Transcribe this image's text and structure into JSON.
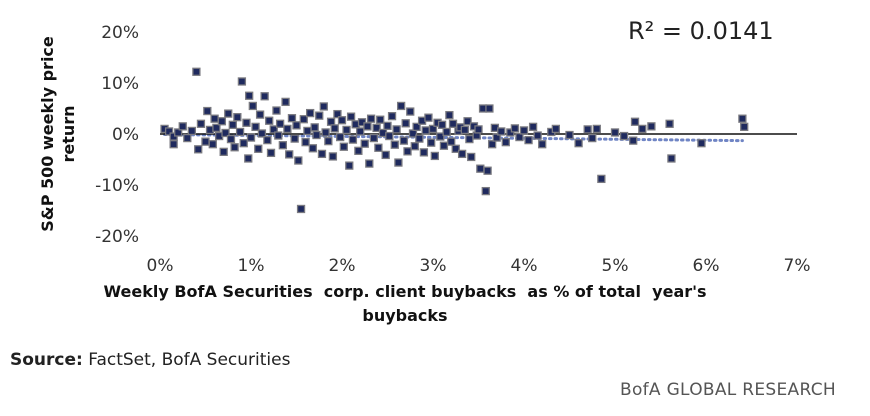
{
  "chart_data": {
    "type": "scatter",
    "annotation": "R² = 0.0141",
    "xlabel_line1": "Weekly BofA Securities  corp. client buybacks  as % of total  year's",
    "xlabel_line2": "buybacks",
    "ylabel_line1": "S&P 500 weekly  price",
    "ylabel_line2": "return",
    "xlim": [
      0,
      7
    ],
    "ylim": [
      -20,
      20
    ],
    "x_ticks": [
      {
        "value": 0,
        "label": "0%"
      },
      {
        "value": 1,
        "label": "1%"
      },
      {
        "value": 2,
        "label": "2%"
      },
      {
        "value": 3,
        "label": "3%"
      },
      {
        "value": 4,
        "label": "4%"
      },
      {
        "value": 5,
        "label": "5%"
      },
      {
        "value": 6,
        "label": "6%"
      },
      {
        "value": 7,
        "label": "7%"
      }
    ],
    "y_ticks": [
      {
        "value": 20,
        "label": "20%"
      },
      {
        "value": 10,
        "label": "10%"
      },
      {
        "value": 0,
        "label": "0%"
      },
      {
        "value": -10,
        "label": "-10%"
      },
      {
        "value": -20,
        "label": "-20%"
      }
    ],
    "grid": false,
    "trendline": {
      "x": [
        0.05,
        6.4
      ],
      "y": [
        -0.1,
        -1.3
      ],
      "style": "dotted"
    },
    "marker_color": "#1f2a5e",
    "marker_edge": "#7a7a80",
    "trend_color": "#6f84c4",
    "points": [
      [
        0.05,
        1.0
      ],
      [
        0.1,
        0.5
      ],
      [
        0.15,
        -0.5
      ],
      [
        0.2,
        0.3
      ],
      [
        0.25,
        1.5
      ],
      [
        0.3,
        -0.8
      ],
      [
        0.35,
        0.6
      ],
      [
        0.4,
        12.2
      ],
      [
        0.42,
        -3.0
      ],
      [
        0.45,
        2.0
      ],
      [
        0.5,
        -1.5
      ],
      [
        0.52,
        4.5
      ],
      [
        0.55,
        0.8
      ],
      [
        0.58,
        -2.0
      ],
      [
        0.6,
        3.0
      ],
      [
        0.62,
        1.2
      ],
      [
        0.65,
        -0.4
      ],
      [
        0.68,
        2.5
      ],
      [
        0.7,
        -3.5
      ],
      [
        0.72,
        0.2
      ],
      [
        0.75,
        4.0
      ],
      [
        0.78,
        -1.0
      ],
      [
        0.8,
        1.8
      ],
      [
        0.82,
        -2.6
      ],
      [
        0.85,
        3.3
      ],
      [
        0.88,
        0.4
      ],
      [
        0.9,
        10.3
      ],
      [
        0.92,
        -1.8
      ],
      [
        0.95,
        2.2
      ],
      [
        0.97,
        -4.8
      ],
      [
        0.98,
        7.5
      ],
      [
        1.0,
        -0.7
      ],
      [
        1.02,
        5.5
      ],
      [
        1.05,
        1.4
      ],
      [
        1.08,
        -2.9
      ],
      [
        1.1,
        3.8
      ],
      [
        1.12,
        0.1
      ],
      [
        1.15,
        7.4
      ],
      [
        1.18,
        -1.2
      ],
      [
        1.2,
        2.6
      ],
      [
        1.22,
        -3.7
      ],
      [
        1.25,
        0.9
      ],
      [
        1.28,
        4.6
      ],
      [
        1.3,
        -0.3
      ],
      [
        1.32,
        2.0
      ],
      [
        1.35,
        -2.2
      ],
      [
        1.38,
        6.3
      ],
      [
        1.4,
        1.0
      ],
      [
        1.42,
        -4.0
      ],
      [
        1.45,
        3.1
      ],
      [
        1.48,
        -0.9
      ],
      [
        1.5,
        1.7
      ],
      [
        1.52,
        -5.2
      ],
      [
        1.55,
        -14.7
      ],
      [
        1.58,
        2.9
      ],
      [
        1.6,
        -1.6
      ],
      [
        1.62,
        0.6
      ],
      [
        1.65,
        4.1
      ],
      [
        1.68,
        -2.8
      ],
      [
        1.7,
        1.3
      ],
      [
        1.72,
        -0.2
      ],
      [
        1.75,
        3.6
      ],
      [
        1.78,
        -3.9
      ],
      [
        1.8,
        5.4
      ],
      [
        1.82,
        0.3
      ],
      [
        1.85,
        -1.4
      ],
      [
        1.88,
        2.4
      ],
      [
        1.9,
        -4.4
      ],
      [
        1.92,
        1.1
      ],
      [
        1.95,
        3.9
      ],
      [
        1.98,
        -0.6
      ],
      [
        2.0,
        2.7
      ],
      [
        2.02,
        -2.5
      ],
      [
        2.05,
        0.8
      ],
      [
        2.08,
        -6.2
      ],
      [
        2.1,
        3.4
      ],
      [
        2.12,
        -1.1
      ],
      [
        2.15,
        1.9
      ],
      [
        2.18,
        -3.3
      ],
      [
        2.2,
        0.5
      ],
      [
        2.22,
        2.3
      ],
      [
        2.25,
        -1.9
      ],
      [
        2.28,
        1.5
      ],
      [
        2.3,
        -5.8
      ],
      [
        2.32,
        3.0
      ],
      [
        2.35,
        -0.8
      ],
      [
        2.38,
        1.2
      ],
      [
        2.4,
        -2.7
      ],
      [
        2.42,
        2.8
      ],
      [
        2.45,
        0.2
      ],
      [
        2.48,
        -4.1
      ],
      [
        2.5,
        1.6
      ],
      [
        2.52,
        -0.4
      ],
      [
        2.55,
        3.5
      ],
      [
        2.58,
        -2.1
      ],
      [
        2.6,
        0.9
      ],
      [
        2.62,
        -5.6
      ],
      [
        2.65,
        5.5
      ],
      [
        2.68,
        -1.3
      ],
      [
        2.7,
        2.1
      ],
      [
        2.72,
        -3.4
      ],
      [
        2.75,
        4.4
      ],
      [
        2.78,
        0.1
      ],
      [
        2.8,
        -2.4
      ],
      [
        2.82,
        1.4
      ],
      [
        2.85,
        -0.9
      ],
      [
        2.88,
        2.6
      ],
      [
        2.9,
        -3.6
      ],
      [
        2.92,
        0.7
      ],
      [
        2.95,
        3.2
      ],
      [
        2.98,
        -1.7
      ],
      [
        3.0,
        1.0
      ],
      [
        3.02,
        -4.3
      ],
      [
        3.05,
        2.2
      ],
      [
        3.08,
        -0.5
      ],
      [
        3.1,
        1.8
      ],
      [
        3.12,
        -2.3
      ],
      [
        3.15,
        0.4
      ],
      [
        3.18,
        3.7
      ],
      [
        3.2,
        -1.5
      ],
      [
        3.22,
        2.0
      ],
      [
        3.25,
        -2.9
      ],
      [
        3.28,
        0.6
      ],
      [
        3.3,
        1.3
      ],
      [
        3.32,
        -3.9
      ],
      [
        3.35,
        0.8
      ],
      [
        3.38,
        2.5
      ],
      [
        3.4,
        -1.0
      ],
      [
        3.42,
        -4.5
      ],
      [
        3.45,
        1.5
      ],
      [
        3.48,
        -0.3
      ],
      [
        3.5,
        0.9
      ],
      [
        3.52,
        -6.8
      ],
      [
        3.55,
        5.0
      ],
      [
        3.58,
        -11.2
      ],
      [
        3.6,
        -7.2
      ],
      [
        3.62,
        5.0
      ],
      [
        3.65,
        -2.0
      ],
      [
        3.68,
        1.2
      ],
      [
        3.7,
        -0.7
      ],
      [
        3.75,
        0.5
      ],
      [
        3.8,
        -1.6
      ],
      [
        3.85,
        0.3
      ],
      [
        3.9,
        1.1
      ],
      [
        3.95,
        -0.6
      ],
      [
        4.0,
        0.7
      ],
      [
        4.05,
        -1.2
      ],
      [
        4.1,
        1.4
      ],
      [
        4.15,
        -0.3
      ],
      [
        4.2,
        -2.0
      ],
      [
        4.3,
        0.4
      ],
      [
        4.35,
        1.0
      ],
      [
        4.5,
        -0.2
      ],
      [
        4.6,
        -1.8
      ],
      [
        4.7,
        0.9
      ],
      [
        4.75,
        -0.8
      ],
      [
        4.8,
        1.0
      ],
      [
        4.85,
        -8.8
      ],
      [
        5.0,
        0.3
      ],
      [
        5.1,
        -0.4
      ],
      [
        5.2,
        -1.3
      ],
      [
        5.22,
        2.4
      ],
      [
        5.3,
        1.0
      ],
      [
        5.4,
        1.5
      ],
      [
        5.6,
        2.0
      ],
      [
        5.62,
        -4.8
      ],
      [
        5.95,
        -1.8
      ],
      [
        6.4,
        3.0
      ],
      [
        6.42,
        1.4
      ],
      [
        0.15,
        -2.0
      ]
    ]
  },
  "footer": {
    "source_label": "Source:",
    "source_text": "FactSet, BofA Securities",
    "brand": "BofA GLOBAL RESEARCH"
  }
}
